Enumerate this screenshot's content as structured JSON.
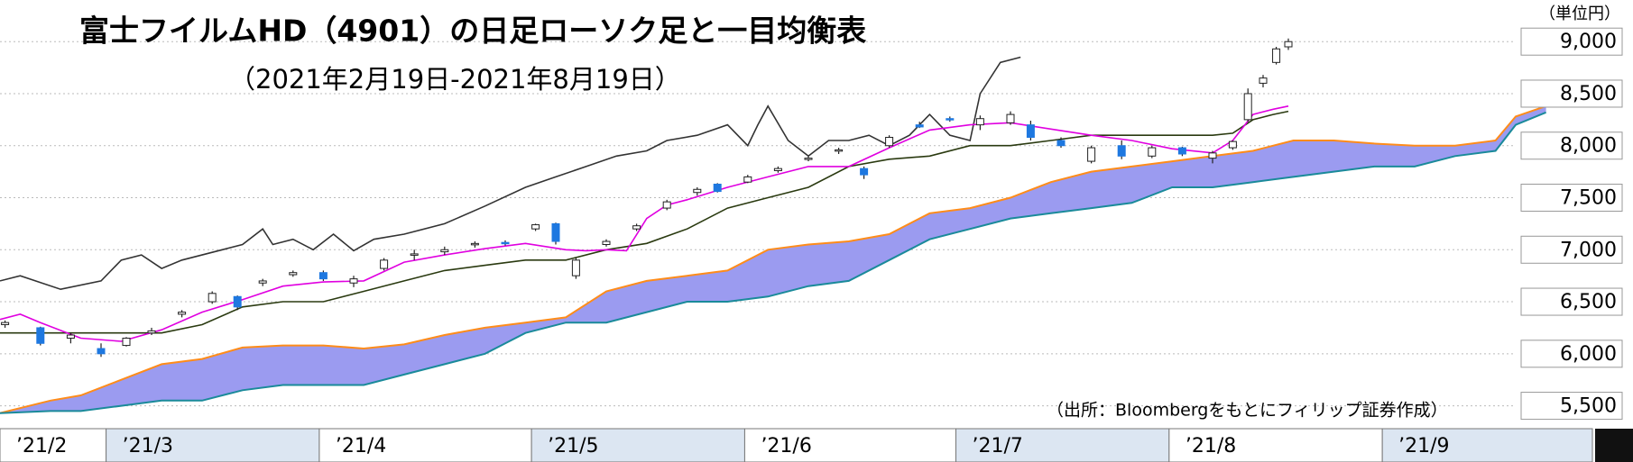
{
  "chart_data": {
    "type": "candlestick",
    "title": "富士フイルムHD（4901）の日足ローソク足と一目均衡表",
    "subtitle": "（2021年2月19日-2021年8月19日）",
    "unit_label": "（単位円）",
    "source": "（出所：Bloombergをもとにフィリップ証券作成）",
    "xlim": [
      0,
      150
    ],
    "xticks": [
      {
        "value": 0,
        "label": "’21/2"
      },
      {
        "value": 10.5,
        "label": "’21/3"
      },
      {
        "value": 31.6,
        "label": "’21/4"
      },
      {
        "value": 52.6,
        "label": "’21/5"
      },
      {
        "value": 73.7,
        "label": "’21/6"
      },
      {
        "value": 94.6,
        "label": "’21/7"
      },
      {
        "value": 115.7,
        "label": "’21/8"
      },
      {
        "value": 136.8,
        "label": "’21/9"
      }
    ],
    "ylim": [
      5280,
      9400
    ],
    "yticks": [
      {
        "value": 5500,
        "label": "5,500"
      },
      {
        "value": 6000,
        "label": "6,000"
      },
      {
        "value": 6500,
        "label": "6,500"
      },
      {
        "value": 7000,
        "label": "7,000"
      },
      {
        "value": 7500,
        "label": "7,500"
      },
      {
        "value": 8000,
        "label": "8,000"
      },
      {
        "value": 8500,
        "label": "8,500"
      },
      {
        "value": 9000,
        "label": "9,000"
      }
    ],
    "grid": true,
    "up_color": "#ffffff",
    "down_color": "#1e78e0",
    "cloud_color": "#9b9bf0",
    "candles": {
      "x": [
        0.5,
        4,
        7,
        10,
        12.5,
        15,
        18,
        21,
        23.5,
        26,
        29,
        32,
        35,
        38,
        41,
        44,
        47,
        50,
        53,
        55,
        57,
        60,
        63,
        66,
        69,
        71,
        74,
        77,
        80,
        83,
        85.5,
        88,
        91,
        94,
        97,
        100,
        102,
        105,
        108,
        111,
        114,
        117,
        120,
        122,
        123.5,
        125,
        126.3,
        127.5
      ],
      "open": [
        6280,
        6250,
        6150,
        6050,
        6080,
        6200,
        6380,
        6500,
        6550,
        6680,
        6760,
        6780,
        6680,
        6820,
        6950,
        6980,
        7050,
        7070,
        7200,
        7250,
        6750,
        7050,
        7200,
        7400,
        7550,
        7630,
        7650,
        7760,
        7870,
        7950,
        7780,
        8000,
        8200,
        8260,
        8200,
        8220,
        8200,
        8050,
        7850,
        8000,
        7900,
        7980,
        7880,
        7980,
        8250,
        8600,
        8800,
        8950
      ],
      "high": [
        6320,
        6260,
        6200,
        6100,
        6160,
        6250,
        6420,
        6600,
        6560,
        6720,
        6800,
        6800,
        6750,
        6920,
        7000,
        7030,
        7080,
        7090,
        7250,
        7260,
        6920,
        7100,
        7250,
        7480,
        7600,
        7640,
        7720,
        7800,
        7900,
        7980,
        7800,
        8100,
        8230,
        8280,
        8290,
        8330,
        8240,
        8080,
        8000,
        8050,
        8000,
        7990,
        7950,
        8050,
        8550,
        8680,
        8950,
        9030
      ],
      "low": [
        6250,
        6080,
        6100,
        5970,
        6070,
        6180,
        6350,
        6480,
        6420,
        6650,
        6740,
        6700,
        6640,
        6800,
        6900,
        6950,
        7020,
        7040,
        7180,
        7050,
        6720,
        7030,
        7180,
        7380,
        7520,
        7550,
        7640,
        7740,
        7850,
        7920,
        7680,
        7980,
        8170,
        8230,
        8150,
        8200,
        8050,
        7980,
        7830,
        7870,
        7880,
        7900,
        7830,
        7960,
        8230,
        8560,
        8780,
        8920
      ],
      "close": [
        6300,
        6100,
        6180,
        6000,
        6150,
        6220,
        6400,
        6580,
        6450,
        6700,
        6780,
        6720,
        6720,
        6900,
        6960,
        7000,
        7060,
        7060,
        7240,
        7080,
        6900,
        7080,
        7230,
        7460,
        7580,
        7560,
        7700,
        7780,
        7880,
        7960,
        7720,
        8080,
        8180,
        8250,
        8260,
        8300,
        8080,
        8000,
        7980,
        7900,
        7980,
        7920,
        7930,
        8040,
        8500,
        8650,
        8930,
        9000
      ]
    },
    "spans": [
      {
        "color": "#ff8c1a",
        "x": [
          0,
          5,
          8,
          12,
          16,
          20,
          24,
          28,
          32,
          36,
          40,
          44,
          48,
          52,
          56,
          60,
          64,
          68,
          72,
          76,
          80,
          84,
          88,
          92,
          96,
          100,
          104,
          108,
          112,
          116,
          120,
          124,
          128,
          132,
          136,
          140,
          144,
          148,
          150,
          153
        ],
        "values": [
          5430,
          5550,
          5600,
          5750,
          5900,
          5950,
          6060,
          6080,
          6080,
          6050,
          6090,
          6180,
          6250,
          6300,
          6350,
          6600,
          6700,
          6750,
          6800,
          7000,
          7050,
          7080,
          7150,
          7350,
          7400,
          7500,
          7650,
          7750,
          7800,
          7850,
          7900,
          7950,
          8050,
          8050,
          8020,
          8000,
          8000,
          8050,
          8280,
          8380
        ]
      },
      {
        "color": "#1a8a9a",
        "x": [
          0,
          5,
          8,
          12,
          16,
          20,
          24,
          28,
          32,
          36,
          40,
          44,
          48,
          52,
          56,
          60,
          64,
          68,
          72,
          76,
          80,
          84,
          88,
          92,
          96,
          100,
          104,
          108,
          112,
          116,
          120,
          124,
          128,
          132,
          136,
          140,
          144,
          148,
          150,
          153
        ],
        "values": [
          5430,
          5450,
          5450,
          5500,
          5550,
          5550,
          5650,
          5700,
          5700,
          5700,
          5800,
          5900,
          6000,
          6200,
          6300,
          6300,
          6400,
          6500,
          6500,
          6550,
          6650,
          6700,
          6900,
          7100,
          7200,
          7300,
          7350,
          7400,
          7450,
          7600,
          7600,
          7650,
          7700,
          7750,
          7800,
          7800,
          7900,
          7950,
          8200,
          8320
        ]
      }
    ],
    "lines": [
      {
        "color": "#333333",
        "x": [
          0,
          2,
          6,
          10,
          12,
          14,
          16,
          18,
          22,
          24,
          26,
          27,
          29,
          31,
          33,
          35,
          37,
          40,
          44,
          48,
          52,
          55,
          58,
          61,
          64,
          66,
          69,
          72,
          74,
          75,
          76,
          78,
          80,
          82,
          84,
          86,
          88,
          90,
          92,
          94,
          96,
          97,
          99,
          101
        ],
        "values": [
          6700,
          6750,
          6620,
          6700,
          6900,
          6950,
          6820,
          6900,
          7000,
          7050,
          7200,
          7050,
          7100,
          7000,
          7150,
          6990,
          7100,
          7150,
          7250,
          7420,
          7600,
          7700,
          7800,
          7900,
          7950,
          8050,
          8100,
          8200,
          8000,
          8200,
          8380,
          8050,
          7900,
          8050,
          8050,
          8100,
          8000,
          8100,
          8300,
          8100,
          8050,
          8500,
          8800,
          8850
        ]
      },
      {
        "color": "#2a3a10",
        "x": [
          0,
          8,
          16,
          20,
          24,
          28,
          32,
          36,
          40,
          44,
          48,
          52,
          56,
          60,
          64,
          68,
          72,
          76,
          80,
          84,
          88,
          92,
          96,
          100,
          104,
          108,
          112,
          116,
          120,
          122,
          124,
          126,
          127.5
        ],
        "values": [
          6200,
          6200,
          6200,
          6280,
          6450,
          6500,
          6500,
          6600,
          6700,
          6800,
          6850,
          6900,
          6900,
          7000,
          7060,
          7200,
          7400,
          7500,
          7600,
          7800,
          7870,
          7900,
          8000,
          8000,
          8050,
          8100,
          8100,
          8100,
          8100,
          8120,
          8250,
          8300,
          8330
        ]
      },
      {
        "color": "#e000e0",
        "x": [
          0,
          2,
          4,
          8,
          12,
          16,
          20,
          24,
          28,
          32,
          36,
          40,
          44,
          48,
          52,
          56,
          58,
          60,
          62,
          64,
          66,
          68,
          72,
          76,
          80,
          84,
          88,
          92,
          96,
          100,
          104,
          108,
          112,
          116,
          120,
          122,
          124,
          126,
          127.5
        ],
        "values": [
          6330,
          6380,
          6300,
          6150,
          6120,
          6230,
          6400,
          6520,
          6650,
          6690,
          6700,
          6880,
          6950,
          7010,
          7060,
          7000,
          6990,
          7000,
          6990,
          7300,
          7430,
          7480,
          7600,
          7700,
          7800,
          7800,
          7980,
          8150,
          8200,
          8220,
          8160,
          8100,
          8050,
          7970,
          7930,
          8050,
          8300,
          8350,
          8380
        ]
      }
    ]
  }
}
